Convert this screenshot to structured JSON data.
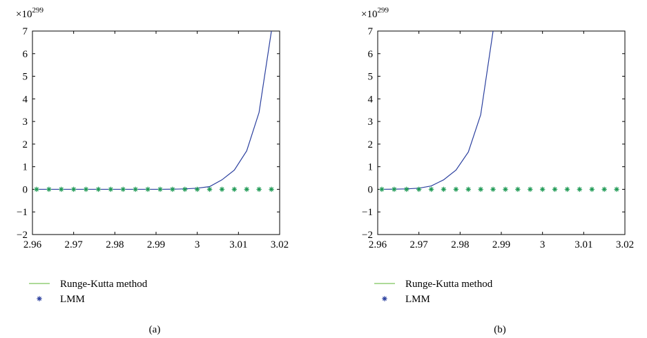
{
  "chart_data": [
    {
      "type": "line",
      "caption": "(a)",
      "exponent_label": {
        "base": "×10",
        "power": "299"
      },
      "xlim": [
        2.96,
        3.02
      ],
      "ylim": [
        -2,
        7
      ],
      "x_ticks": [
        2.96,
        2.97,
        2.98,
        2.99,
        3,
        3.01,
        3.02
      ],
      "y_ticks": [
        -2,
        -1,
        0,
        1,
        2,
        3,
        4,
        5,
        6,
        7
      ],
      "grid": false,
      "legend_placement": "below",
      "legend": [
        {
          "label": "Runge-Kutta method",
          "marker": "line",
          "color": "#7cc35a"
        },
        {
          "label": "LMM",
          "marker": "asterisk",
          "color": "#2a3f9e"
        }
      ],
      "series": [
        {
          "color": "#2a3f9e",
          "style": "line",
          "x": [
            2.961,
            2.964,
            2.967,
            2.97,
            2.973,
            2.976,
            2.979,
            2.982,
            2.985,
            2.988,
            2.991,
            2.994,
            2.997,
            3.0,
            3.003,
            3.006,
            3.009,
            3.012,
            3.015,
            3.018
          ],
          "y": [
            0,
            0,
            0,
            0,
            0,
            0,
            0,
            0,
            0,
            0,
            0,
            0.005,
            0.02,
            0.05,
            0.12,
            0.42,
            0.85,
            1.7,
            3.4,
            7.0
          ]
        },
        {
          "color": "#1f9a55",
          "style": "asterisk",
          "x": [
            2.961,
            2.964,
            2.967,
            2.97,
            2.973,
            2.976,
            2.979,
            2.982,
            2.985,
            2.988,
            2.991,
            2.994,
            2.997,
            3.0,
            3.003,
            3.006,
            3.009,
            3.012,
            3.015,
            3.018
          ],
          "y": [
            0,
            0,
            0,
            0,
            0,
            0,
            0,
            0,
            0,
            0,
            0,
            0,
            0,
            0,
            0,
            0,
            0,
            0,
            0,
            0
          ]
        }
      ]
    },
    {
      "type": "line",
      "caption": "(b)",
      "exponent_label": {
        "base": "×10",
        "power": "299"
      },
      "xlim": [
        2.96,
        3.02
      ],
      "ylim": [
        -2,
        7
      ],
      "x_ticks": [
        2.96,
        2.97,
        2.98,
        2.99,
        3,
        3.01,
        3.02
      ],
      "y_ticks": [
        -2,
        -1,
        0,
        1,
        2,
        3,
        4,
        5,
        6,
        7
      ],
      "grid": false,
      "legend_placement": "below",
      "legend": [
        {
          "label": "Runge-Kutta method",
          "marker": "line",
          "color": "#7cc35a"
        },
        {
          "label": "LMM",
          "marker": "asterisk",
          "color": "#2a3f9e"
        }
      ],
      "series": [
        {
          "color": "#2a3f9e",
          "style": "line",
          "x": [
            2.961,
            2.964,
            2.967,
            2.97,
            2.973,
            2.976,
            2.979,
            2.982,
            2.985,
            2.988
          ],
          "y": [
            0,
            0.005,
            0.02,
            0.05,
            0.15,
            0.42,
            0.85,
            1.65,
            3.3,
            7.0
          ]
        },
        {
          "color": "#1f9a55",
          "style": "asterisk",
          "x": [
            2.961,
            2.964,
            2.967,
            2.97,
            2.973,
            2.976,
            2.979,
            2.982,
            2.985,
            2.988,
            2.991,
            2.994,
            2.997,
            3.0,
            3.003,
            3.006,
            3.009,
            3.012,
            3.015,
            3.018
          ],
          "y": [
            0,
            0,
            0,
            0,
            0,
            0,
            0,
            0,
            0,
            0,
            0,
            0,
            0,
            0,
            0,
            0,
            0,
            0,
            0,
            0
          ]
        }
      ]
    }
  ]
}
